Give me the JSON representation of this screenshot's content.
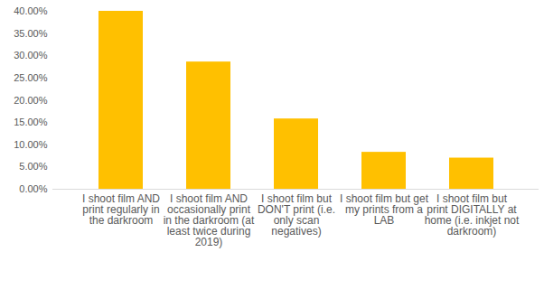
{
  "chart_data": {
    "type": "bar",
    "categories": [
      "I shoot film AND print regularly in the darkroom",
      "I shoot film AND occasionally print in the darkroom (at least twice during 2019)",
      "I shoot film but DON'T print (i.e. only scan negatives)",
      "I shoot film but get my prints from a LAB",
      "I shoot film but print DIGITALLY at home (i.e. inkjet not darkroom)"
    ],
    "values": [
      40.0,
      28.6,
      15.8,
      8.3,
      7.0
    ],
    "color": "#ffc000",
    "ylim": [
      0,
      40
    ],
    "yticks": [
      {
        "value": 0,
        "label": "0.00%"
      },
      {
        "value": 5,
        "label": "5.00%"
      },
      {
        "value": 10,
        "label": "10.00%"
      },
      {
        "value": 15,
        "label": "15.00%"
      },
      {
        "value": 20,
        "label": "20.00%"
      },
      {
        "value": 25,
        "label": "25.00%"
      },
      {
        "value": 30,
        "label": "30.00%"
      },
      {
        "value": 35,
        "label": "35.00%"
      },
      {
        "value": 40,
        "label": "40.00%"
      }
    ],
    "grid": false
  }
}
